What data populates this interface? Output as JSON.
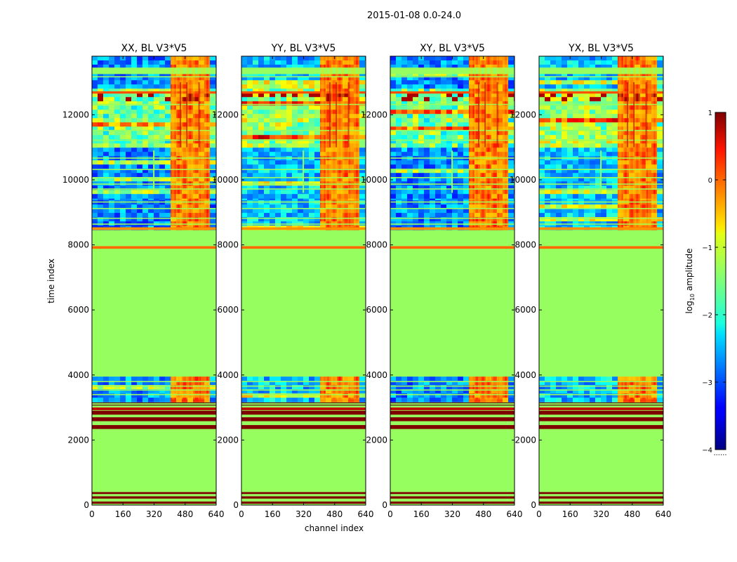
{
  "chart_data": {
    "type": "heatmap",
    "title": "2015-01-08 0.0-24.0",
    "xlabel": "channel index",
    "ylabel": "time index",
    "xlim": [
      0,
      640
    ],
    "ylim": [
      0,
      13800
    ],
    "x_ticks": [
      0,
      160,
      320,
      480,
      640
    ],
    "y_ticks": [
      0,
      2000,
      4000,
      6000,
      8000,
      10000,
      12000
    ],
    "x_tick_labels": [
      "0",
      "160",
      "320",
      "480",
      "640"
    ],
    "y_tick_labels": [
      "0",
      "2000",
      "4000",
      "6000",
      "8000",
      "10000",
      "12000"
    ],
    "panels": [
      {
        "title": "XX, BL V3*V5",
        "pol": "XX"
      },
      {
        "title": "YY, BL V3*V5",
        "pol": "YY"
      },
      {
        "title": "XY, BL V3*V5",
        "pol": "XY"
      },
      {
        "title": "YX, BL V3*V5",
        "pol": "YX"
      }
    ],
    "colorbar": {
      "label": "log10 amplitude",
      "label_prefix": "log",
      "label_sub": "10",
      "label_suffix": " amplitude",
      "vmin": -4,
      "vmax": 1,
      "ticks": [
        -4,
        -3,
        -2,
        -1,
        0,
        1
      ],
      "tick_labels": [
        "−4",
        "−3",
        "−2",
        "−1",
        "0",
        "1"
      ],
      "colormap": "jet",
      "footer": "......"
    },
    "colors": {
      "background_fill": "#96ff5f",
      "axis_frame": "#000000",
      "flag_saturated": "#7f0000",
      "flag_orange": "#ff6a00"
    }
  }
}
